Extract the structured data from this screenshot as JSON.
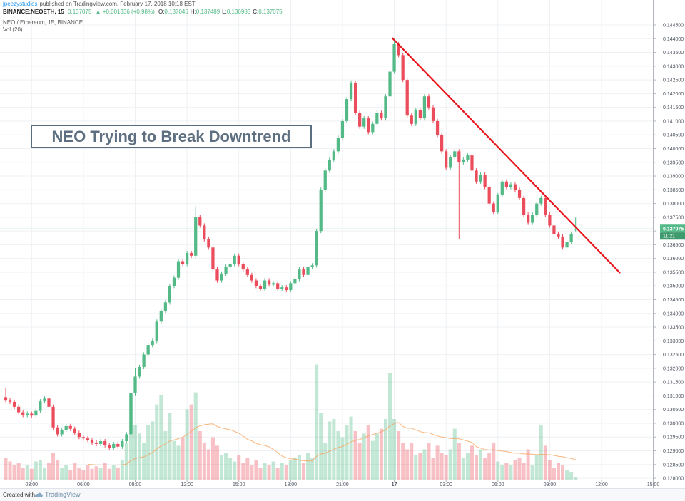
{
  "header": {
    "author": "jpeezystudios",
    "published": "published on TradingView.com, February 17, 2018 10:18 EST",
    "symbol": "BINANCE:NEOETH, 15",
    "last": "0.137075",
    "change": "▲ +0.001336 (+0.98%)",
    "quote": [
      {
        "key": "O:",
        "value": "0.137046"
      },
      {
        "key": "H:",
        "value": "0.137489"
      },
      {
        "key": "L:",
        "value": "0.136983"
      },
      {
        "key": "C:",
        "value": "0.137075"
      }
    ]
  },
  "chart_data": {
    "type": "candlestick",
    "title": "NEO Trying to Break Downtrend",
    "legend": "NEO / Ethereum, 15, BINANCE",
    "volume_label": "Vol (20)",
    "open": [
      0.13095,
      0.13085,
      0.13078,
      0.1306,
      0.1304,
      0.1303,
      0.13035,
      0.13028,
      0.13045,
      0.1308,
      0.1309,
      0.1306,
      0.12985,
      0.1296,
      0.12975,
      0.1299,
      0.1298,
      0.12965,
      0.1295,
      0.12945,
      0.1294,
      0.1293,
      0.12925,
      0.12935,
      0.1292,
      0.1291,
      0.12925,
      0.12915,
      0.12935,
      0.1296,
      0.1311,
      0.1317,
      0.13205,
      0.1325,
      0.13285,
      0.133,
      0.1337,
      0.1341,
      0.1344,
      0.135,
      0.1353,
      0.1359,
      0.1358,
      0.1362,
      0.1361,
      0.1375,
      0.1372,
      0.1367,
      0.1364,
      0.1356,
      0.1352,
      0.13545,
      0.1357,
      0.1358,
      0.1361,
      0.1358,
      0.1356,
      0.1354,
      0.1352,
      0.135,
      0.1349,
      0.1352,
      0.13505,
      0.1351,
      0.1349,
      0.13495,
      0.13485,
      0.1351,
      0.13525,
      0.1356,
      0.1354,
      0.1357,
      0.13575,
      0.137,
      0.1385,
      0.1392,
      0.1396,
      0.1399,
      0.1404,
      0.141,
      0.1418,
      0.1424,
      0.1413,
      0.1408,
      0.1411,
      0.1406,
      0.1409,
      0.1413,
      0.1411,
      0.1419,
      0.1428,
      0.1438,
      0.1434,
      0.1425,
      0.1412,
      0.1409,
      0.1414,
      0.1411,
      0.1419,
      0.1415,
      0.141,
      0.1405,
      0.1399,
      0.1393,
      0.1397,
      0.1399,
      0.1395,
      0.1396,
      0.13975,
      0.1392,
      0.1388,
      0.13905,
      0.1386,
      0.138,
      0.1377,
      0.1383,
      0.1388,
      0.1386,
      0.1387,
      0.1385,
      0.1382,
      0.1376,
      0.1373,
      0.1376,
      0.138,
      0.1382,
      0.1376,
      0.1372,
      0.1369,
      0.1368,
      0.1364,
      0.1366,
      0.137046
    ],
    "high": [
      0.1313,
      0.13093,
      0.13086,
      0.13068,
      0.13048,
      0.13043,
      0.13043,
      0.13053,
      0.13088,
      0.13098,
      0.1311,
      0.13068,
      0.12993,
      0.12983,
      0.12998,
      0.12998,
      0.12988,
      0.12973,
      0.12958,
      0.12953,
      0.12948,
      0.12938,
      0.12943,
      0.12943,
      0.12928,
      0.12933,
      0.12933,
      0.12943,
      0.12968,
      0.13118,
      0.132,
      0.13213,
      0.13258,
      0.13293,
      0.1331,
      0.13378,
      0.13418,
      0.13448,
      0.13508,
      0.13538,
      0.13598,
      0.13598,
      0.13628,
      0.13628,
      0.1379,
      0.13758,
      0.13728,
      0.13678,
      0.13648,
      0.13568,
      0.13553,
      0.13578,
      0.13588,
      0.13618,
      0.13618,
      0.13588,
      0.13568,
      0.13548,
      0.13528,
      0.13508,
      0.13528,
      0.13528,
      0.13518,
      0.13518,
      0.13503,
      0.13503,
      0.13518,
      0.13533,
      0.13568,
      0.13568,
      0.13578,
      0.13583,
      0.13708,
      0.13858,
      0.13928,
      0.13968,
      0.13998,
      0.14048,
      0.14108,
      0.14188,
      0.14248,
      0.14248,
      0.14138,
      0.14118,
      0.14118,
      0.14098,
      0.14138,
      0.14138,
      0.14198,
      0.14288,
      0.144,
      0.14388,
      0.14348,
      0.14258,
      0.14128,
      0.14148,
      0.14148,
      0.14198,
      0.14198,
      0.14158,
      0.14108,
      0.14058,
      0.13998,
      0.13978,
      0.13998,
      0.13998,
      0.13968,
      0.13983,
      0.13983,
      0.13928,
      0.13913,
      0.13913,
      0.13868,
      0.13808,
      0.13838,
      0.13888,
      0.13888,
      0.13878,
      0.13878,
      0.13858,
      0.13828,
      0.13768,
      0.13768,
      0.13808,
      0.13828,
      0.13828,
      0.13768,
      0.13728,
      0.13698,
      0.13688,
      0.13668,
      0.13698,
      0.137489
    ],
    "low": [
      0.13077,
      0.1307,
      0.13052,
      0.13032,
      0.13022,
      0.13022,
      0.1302,
      0.1302,
      0.13037,
      0.13072,
      0.13052,
      0.12977,
      0.12952,
      0.12952,
      0.12967,
      0.12972,
      0.12957,
      0.12942,
      0.12937,
      0.12932,
      0.12922,
      0.12917,
      0.12917,
      0.12912,
      0.12902,
      0.12902,
      0.12907,
      0.12907,
      0.12927,
      0.12952,
      0.13102,
      0.13162,
      0.13197,
      0.13242,
      0.13277,
      0.13292,
      0.13362,
      0.13402,
      0.13432,
      0.13492,
      0.13522,
      0.13572,
      0.13572,
      0.13602,
      0.13602,
      0.13712,
      0.13662,
      0.13632,
      0.13552,
      0.13512,
      0.13512,
      0.13537,
      0.13562,
      0.13572,
      0.13572,
      0.13552,
      0.13532,
      0.13512,
      0.13492,
      0.13482,
      0.13482,
      0.13497,
      0.13497,
      0.13482,
      0.13482,
      0.13477,
      0.13477,
      0.13502,
      0.13517,
      0.13532,
      0.13532,
      0.13562,
      0.13567,
      0.13692,
      0.13842,
      0.13912,
      0.13952,
      0.13982,
      0.14032,
      0.14092,
      0.14172,
      0.14122,
      0.14072,
      0.14072,
      0.14052,
      0.14052,
      0.14082,
      0.14102,
      0.14102,
      0.14182,
      0.14272,
      0.14332,
      0.14242,
      0.14112,
      0.14082,
      0.14082,
      0.14102,
      0.14102,
      0.14142,
      0.14092,
      0.14042,
      0.13982,
      0.13922,
      0.13922,
      0.13962,
      0.1367,
      0.13942,
      0.13952,
      0.13912,
      0.13872,
      0.13872,
      0.13852,
      0.13792,
      0.13762,
      0.13762,
      0.13822,
      0.13852,
      0.13852,
      0.13842,
      0.13812,
      0.13752,
      0.13722,
      0.13722,
      0.13752,
      0.13792,
      0.13752,
      0.13712,
      0.13682,
      0.13672,
      0.13632,
      0.13632,
      0.13652,
      0.136983
    ],
    "close": [
      0.13085,
      0.13078,
      0.1306,
      0.1304,
      0.1303,
      0.13035,
      0.13028,
      0.13045,
      0.1308,
      0.1309,
      0.1306,
      0.12985,
      0.1296,
      0.12975,
      0.1299,
      0.1298,
      0.12965,
      0.1295,
      0.12945,
      0.1294,
      0.1293,
      0.12925,
      0.12935,
      0.1292,
      0.1291,
      0.12925,
      0.12915,
      0.12935,
      0.1296,
      0.1311,
      0.1317,
      0.13205,
      0.1325,
      0.13285,
      0.133,
      0.1337,
      0.1341,
      0.1344,
      0.135,
      0.1353,
      0.1359,
      0.1358,
      0.1362,
      0.1361,
      0.1375,
      0.1372,
      0.1367,
      0.1364,
      0.1356,
      0.1352,
      0.13545,
      0.1357,
      0.1358,
      0.1361,
      0.1358,
      0.1356,
      0.1354,
      0.1352,
      0.135,
      0.1349,
      0.1352,
      0.13505,
      0.1351,
      0.1349,
      0.13495,
      0.13485,
      0.1351,
      0.13525,
      0.1356,
      0.1354,
      0.1357,
      0.13575,
      0.137,
      0.1385,
      0.1392,
      0.1396,
      0.1399,
      0.1404,
      0.141,
      0.1418,
      0.1424,
      0.1413,
      0.1408,
      0.1411,
      0.1406,
      0.1409,
      0.1413,
      0.1411,
      0.1419,
      0.1428,
      0.1438,
      0.1434,
      0.1425,
      0.1412,
      0.1409,
      0.1414,
      0.1411,
      0.1419,
      0.1415,
      0.141,
      0.1405,
      0.1399,
      0.1393,
      0.1397,
      0.1399,
      0.1395,
      0.1396,
      0.13975,
      0.1392,
      0.1388,
      0.13905,
      0.1386,
      0.138,
      0.1377,
      0.1383,
      0.1388,
      0.1386,
      0.1387,
      0.1385,
      0.1382,
      0.1376,
      0.1373,
      0.1376,
      0.138,
      0.1382,
      0.1376,
      0.1372,
      0.1369,
      0.1368,
      0.1364,
      0.1366,
      0.1369,
      0.137075
    ],
    "volume": [
      18,
      15,
      12,
      14,
      10,
      12,
      9,
      15,
      16,
      10,
      14,
      22,
      16,
      10,
      12,
      8,
      14,
      10,
      8,
      12,
      9,
      11,
      10,
      14,
      9,
      12,
      10,
      16,
      30,
      70,
      45,
      38,
      30,
      45,
      48,
      62,
      70,
      40,
      55,
      32,
      28,
      35,
      58,
      62,
      72,
      40,
      30,
      25,
      35,
      28,
      20,
      22,
      18,
      15,
      20,
      14,
      18,
      12,
      16,
      10,
      14,
      12,
      15,
      10,
      14,
      12,
      16,
      18,
      20,
      14,
      22,
      18,
      95,
      55,
      30,
      48,
      50,
      40,
      35,
      45,
      52,
      40,
      30,
      38,
      45,
      32,
      38,
      42,
      50,
      88,
      50,
      40,
      30,
      25,
      30,
      20,
      22,
      25,
      30,
      18,
      28,
      22,
      20,
      25,
      42,
      30,
      18,
      22,
      28,
      20,
      25,
      18,
      22,
      30,
      15,
      12,
      14,
      12,
      16,
      18,
      14,
      25,
      12,
      20,
      45,
      28,
      16,
      10,
      14,
      12,
      8,
      6,
      2
    ],
    "up_color": "#53b987",
    "down_color": "#eb4d5c",
    "grid": true,
    "xlim": [
      -1.32,
      149.9
    ],
    "xticks": [
      {
        "value": 6,
        "label": "03:00"
      },
      {
        "value": 18,
        "label": "06:00"
      },
      {
        "value": 30,
        "label": "09:00"
      },
      {
        "value": 42,
        "label": "12:00"
      },
      {
        "value": 54,
        "label": "15:00"
      },
      {
        "value": 66,
        "label": "18:00"
      },
      {
        "value": 78,
        "label": "21:00"
      },
      {
        "value": 90,
        "label": "17"
      },
      {
        "value": 102,
        "label": "03:00"
      },
      {
        "value": 114,
        "label": "06:00"
      },
      {
        "value": 126,
        "label": "09:00"
      },
      {
        "value": 138,
        "label": "12:00"
      },
      {
        "value": 150,
        "label": "15:00"
      }
    ],
    "ylim": [
      0.12795,
      0.14463
    ],
    "yticks": [
      {
        "value": 0.128,
        "label": "0.128000"
      },
      {
        "value": 0.1285,
        "label": "0.128500"
      },
      {
        "value": 0.129,
        "label": "0.129000"
      },
      {
        "value": 0.1295,
        "label": "0.129500"
      },
      {
        "value": 0.13,
        "label": "0.130000"
      },
      {
        "value": 0.1305,
        "label": "0.130500"
      },
      {
        "value": 0.131,
        "label": "0.131000"
      },
      {
        "value": 0.1315,
        "label": "0.131500"
      },
      {
        "value": 0.132,
        "label": "0.132000"
      },
      {
        "value": 0.1325,
        "label": "0.132500"
      },
      {
        "value": 0.133,
        "label": "0.133000"
      },
      {
        "value": 0.1335,
        "label": "0.133500"
      },
      {
        "value": 0.134,
        "label": "0.134000"
      },
      {
        "value": 0.1345,
        "label": "0.134500"
      },
      {
        "value": 0.135,
        "label": "0.135000"
      },
      {
        "value": 0.1355,
        "label": "0.135500"
      },
      {
        "value": 0.136,
        "label": "0.136000"
      },
      {
        "value": 0.1365,
        "label": "0.136500"
      },
      {
        "value": 0.137,
        "label": "0.137000"
      },
      {
        "value": 0.1375,
        "label": "0.137500"
      },
      {
        "value": 0.138,
        "label": "0.138000"
      },
      {
        "value": 0.1385,
        "label": "0.138500"
      },
      {
        "value": 0.139,
        "label": "0.139000"
      },
      {
        "value": 0.1395,
        "label": "0.139500"
      },
      {
        "value": 0.14,
        "label": "0.140000"
      },
      {
        "value": 0.1405,
        "label": "0.140500"
      },
      {
        "value": 0.141,
        "label": "0.141000"
      },
      {
        "value": 0.1415,
        "label": "0.141500"
      },
      {
        "value": 0.142,
        "label": "0.142000"
      },
      {
        "value": 0.1425,
        "label": "0.142500"
      },
      {
        "value": 0.143,
        "label": "0.143000"
      },
      {
        "value": 0.1435,
        "label": "0.143500"
      },
      {
        "value": 0.144,
        "label": "0.144000"
      },
      {
        "value": 0.1445,
        "label": "0.144500"
      }
    ],
    "vlim": [
      0,
      100
    ],
    "last_price": 0.137075,
    "countdown": "11:21",
    "trendline": {
      "x": [
        89.5,
        142.3
      ],
      "y": [
        0.14403,
        0.13547
      ],
      "color": "#e8141c"
    }
  },
  "footer": {
    "created": "Created with",
    "brand": "TradingView"
  }
}
